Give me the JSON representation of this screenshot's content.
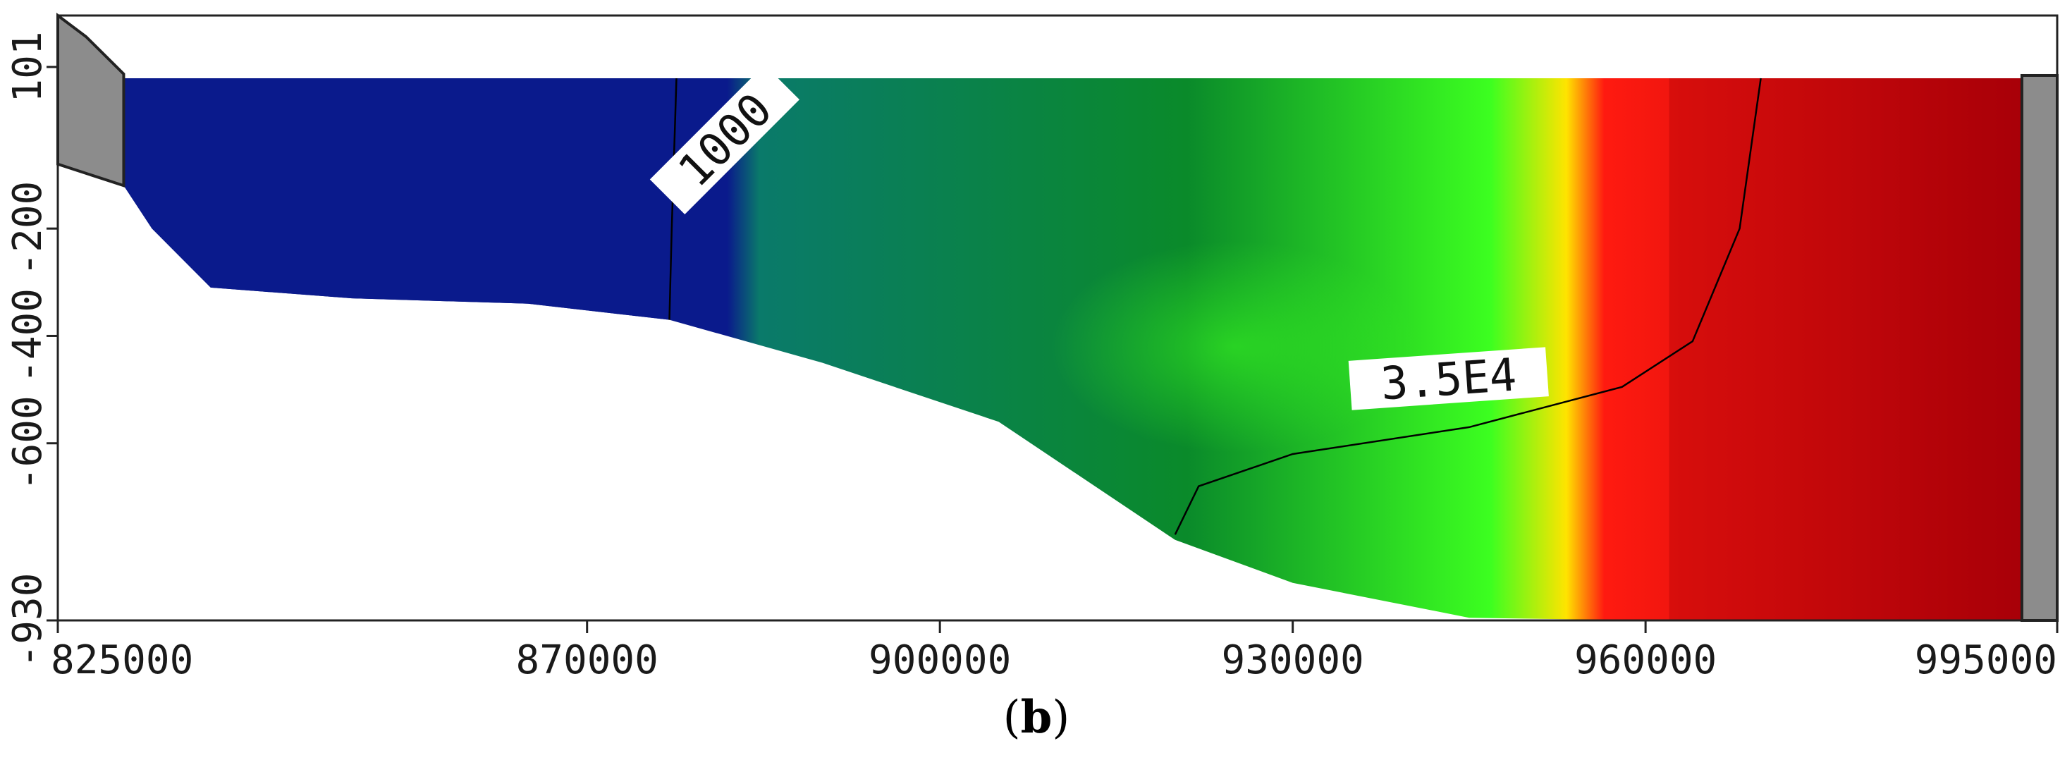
{
  "panel": {
    "label_open": "(",
    "label_letter": "b",
    "label_close": ")"
  },
  "colors": {
    "freshwater": "#0a1a8c",
    "mid": "#0a8a2a",
    "brackish": "#3cff20",
    "transition": "#ffe400",
    "saline": "#ff1a10",
    "saline_deep": "#a80008",
    "boundary_fill": "#8c8c8c",
    "frame": "#222222"
  },
  "chart_data": {
    "type": "heatmap",
    "title": "",
    "xlabel": "",
    "ylabel": "",
    "xlim": [
      825000,
      995000
    ],
    "ylim": [
      -930,
      101
    ],
    "x_ticks": [
      825000,
      870000,
      900000,
      930000,
      960000,
      995000
    ],
    "x_tick_labels": [
      "825000",
      "870000",
      "900000",
      "930000",
      "960000",
      "995000"
    ],
    "y_ticks": [
      101,
      -200,
      -400,
      -600,
      -930
    ],
    "y_tick_labels": [
      "101",
      "-200",
      "-400",
      "-600",
      "-930"
    ],
    "contours": [
      {
        "value": 1000,
        "label": "1000"
      },
      {
        "value": 35000,
        "label": "3.5E4"
      }
    ],
    "surface_y": 80,
    "bottom_profile": [
      {
        "x": 833000,
        "y": -200
      },
      {
        "x": 838000,
        "y": -310
      },
      {
        "x": 850000,
        "y": -330
      },
      {
        "x": 865000,
        "y": -340
      },
      {
        "x": 877000,
        "y": -370
      },
      {
        "x": 890000,
        "y": -450
      },
      {
        "x": 905000,
        "y": -560
      },
      {
        "x": 920000,
        "y": -780
      },
      {
        "x": 930000,
        "y": -860
      },
      {
        "x": 945000,
        "y": -925
      },
      {
        "x": 960000,
        "y": -930
      },
      {
        "x": 992000,
        "y": -930
      }
    ],
    "contour_1000": [
      {
        "x": 877000,
        "y": -370
      },
      {
        "x": 877200,
        "y": -200
      },
      {
        "x": 877600,
        "y": 80
      }
    ],
    "contour_35000": [
      {
        "x": 920000,
        "y": -770
      },
      {
        "x": 922000,
        "y": -680
      },
      {
        "x": 930000,
        "y": -620
      },
      {
        "x": 945000,
        "y": -570
      },
      {
        "x": 958000,
        "y": -495
      },
      {
        "x": 964000,
        "y": -410
      },
      {
        "x": 968000,
        "y": -200
      },
      {
        "x": 969800,
        "y": 80
      }
    ]
  }
}
